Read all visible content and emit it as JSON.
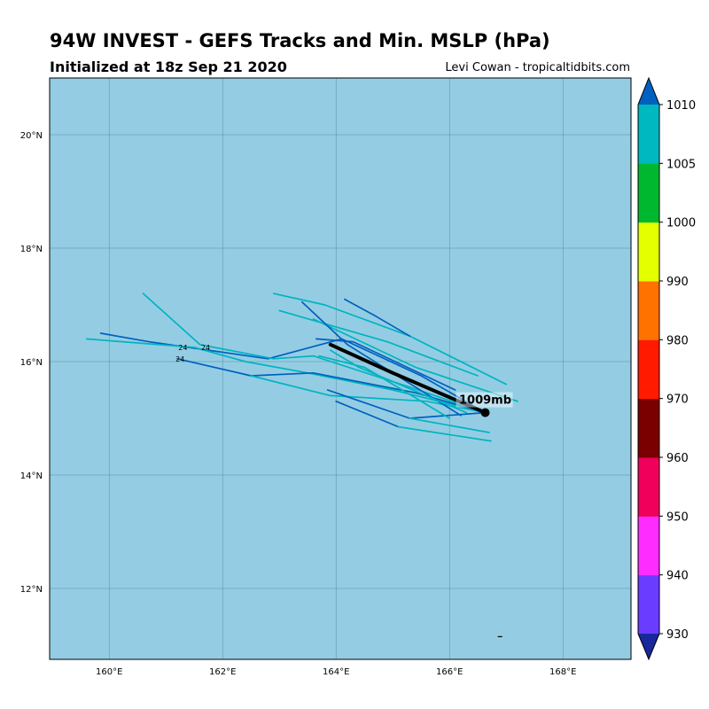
{
  "header": {
    "title": "94W INVEST - GEFS Tracks and Min. MSLP (hPa)",
    "subtitle": "Initialized at 18z Sep 21 2020",
    "credit": "Levi Cowan - tropicaltidbits.com"
  },
  "map": {
    "lon_range": [
      158.95,
      169.2
    ],
    "lat_range": [
      10.75,
      21.0
    ],
    "ocean_color": "#94cde3",
    "grid_color": "#4a6f80",
    "x_ticks": [
      {
        "value": 160,
        "label": "160°E"
      },
      {
        "value": 162,
        "label": "162°E"
      },
      {
        "value": 164,
        "label": "164°E"
      },
      {
        "value": 166,
        "label": "166°E"
      },
      {
        "value": 168,
        "label": "168°E"
      }
    ],
    "y_ticks": [
      {
        "value": 12,
        "label": "12°N"
      },
      {
        "value": 14,
        "label": "14°N"
      },
      {
        "value": 16,
        "label": "16°N"
      },
      {
        "value": 18,
        "label": "18°N"
      },
      {
        "value": 20,
        "label": "20°N"
      }
    ]
  },
  "chart_data": {
    "type": "map-tracks",
    "ensemble_tracks": [
      {
        "color": "#0060c0",
        "points": [
          [
            166.63,
            15.1
          ],
          [
            165.5,
            15.75
          ],
          [
            164.1,
            16.4
          ],
          [
            162.8,
            16.05
          ],
          [
            161.4,
            16.25
          ],
          [
            160.7,
            16.35
          ],
          [
            159.85,
            16.5
          ]
        ]
      },
      {
        "color": "#00b4c0",
        "points": [
          [
            166.63,
            15.1
          ],
          [
            165.3,
            15.55
          ],
          [
            163.6,
            16.1
          ],
          [
            162.9,
            16.05
          ],
          [
            161.6,
            16.3
          ],
          [
            160.6,
            17.2
          ]
        ]
      },
      {
        "color": "#00b4c0",
        "points": [
          [
            166.63,
            15.1
          ],
          [
            165.0,
            15.5
          ],
          [
            163.5,
            15.8
          ],
          [
            162.4,
            16.0
          ],
          [
            161.5,
            16.25
          ],
          [
            159.6,
            16.4
          ]
        ]
      },
      {
        "color": "#0060c0",
        "points": [
          [
            166.63,
            15.1
          ],
          [
            165.4,
            15.45
          ],
          [
            163.6,
            15.8
          ],
          [
            162.5,
            15.75
          ],
          [
            161.2,
            16.05
          ]
        ]
      },
      {
        "color": "#00b4c0",
        "points": [
          [
            166.63,
            15.1
          ],
          [
            165.6,
            15.3
          ],
          [
            163.9,
            15.4
          ],
          [
            162.5,
            15.75
          ]
        ]
      },
      {
        "color": "#0060c0",
        "points": [
          [
            166.63,
            15.1
          ],
          [
            165.3,
            15.0
          ],
          [
            163.85,
            15.5
          ]
        ]
      },
      {
        "color": "#00b4c0",
        "points": [
          [
            166.7,
            14.75
          ],
          [
            165.3,
            15.0
          ]
        ]
      },
      {
        "color": "#0060c0",
        "points": [
          [
            165.1,
            14.85
          ],
          [
            164.0,
            15.3
          ]
        ]
      },
      {
        "color": "#00b4c0",
        "points": [
          [
            166.73,
            14.6
          ],
          [
            165.1,
            14.85
          ]
        ]
      },
      {
        "color": "#00b4c0",
        "points": [
          [
            167.0,
            15.6
          ],
          [
            165.3,
            16.45
          ],
          [
            163.8,
            17.0
          ],
          [
            162.9,
            17.2
          ]
        ]
      },
      {
        "color": "#0060c0",
        "points": [
          [
            165.3,
            16.45
          ],
          [
            164.7,
            16.8
          ],
          [
            164.15,
            17.1
          ]
        ]
      },
      {
        "color": "#00b4c0",
        "points": [
          [
            166.5,
            15.75
          ],
          [
            164.9,
            16.35
          ],
          [
            163.0,
            16.9
          ]
        ]
      },
      {
        "color": "#00b4c0",
        "points": [
          [
            167.2,
            15.3
          ],
          [
            165.4,
            15.9
          ],
          [
            163.6,
            16.75
          ]
        ]
      },
      {
        "color": "#0060c0",
        "points": [
          [
            166.2,
            15.05
          ],
          [
            164.2,
            16.3
          ],
          [
            163.4,
            17.05
          ]
        ]
      },
      {
        "color": "#00b4c0",
        "points": [
          [
            166.0,
            15.0
          ],
          [
            164.5,
            15.9
          ],
          [
            163.7,
            16.1
          ]
        ]
      },
      {
        "color": "#0060c0",
        "points": [
          [
            166.1,
            15.5
          ],
          [
            164.3,
            16.35
          ],
          [
            163.65,
            16.4
          ]
        ]
      },
      {
        "color": "#00b4c0",
        "points": [
          [
            166.3,
            15.1
          ],
          [
            164.4,
            15.9
          ],
          [
            163.9,
            16.2
          ]
        ]
      }
    ],
    "mean_track": {
      "color": "#000000",
      "points": [
        [
          163.9,
          16.3
        ],
        [
          165.0,
          15.8
        ],
        [
          166.63,
          15.1
        ]
      ]
    },
    "current_position": {
      "lon": 166.63,
      "lat": 15.1,
      "label": "1009mb"
    },
    "hour_labels": [
      {
        "text": "24",
        "lon": 161.3,
        "lat": 16.25
      },
      {
        "text": "24",
        "lon": 161.7,
        "lat": 16.25
      },
      {
        "text": "24",
        "lon": 161.25,
        "lat": 16.05
      }
    ],
    "colorbar": {
      "levels": [
        930,
        940,
        950,
        960,
        970,
        980,
        990,
        1000,
        1005,
        1010
      ],
      "colors": [
        "#6a3cff",
        "#ff2cff",
        "#f0005a",
        "#7a0000",
        "#ff1a00",
        "#ff7200",
        "#e4ff00",
        "#00b830",
        "#00b8c0"
      ],
      "under_color": "#18289c",
      "over_color": "#0060c0"
    }
  }
}
